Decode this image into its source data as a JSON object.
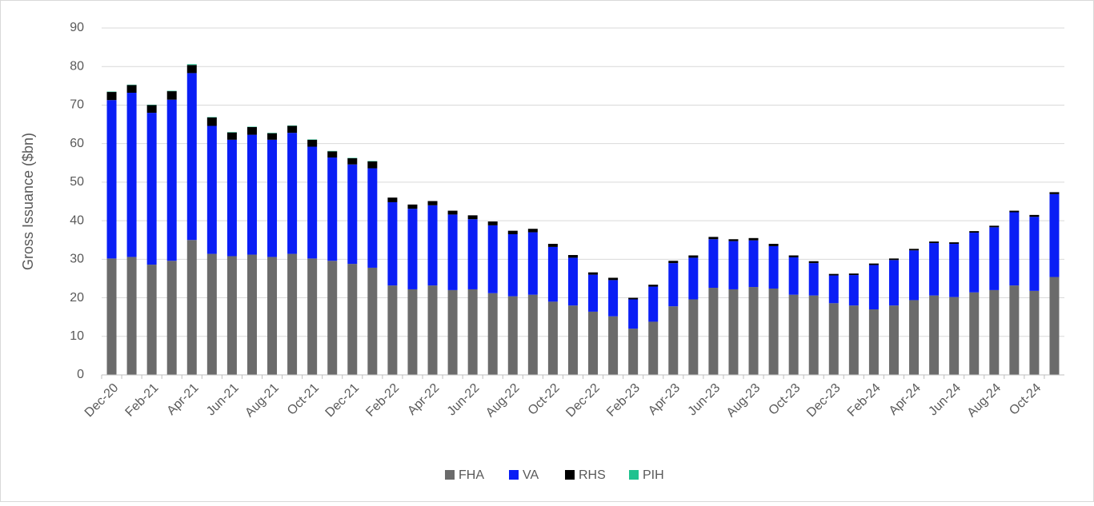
{
  "chart_data": {
    "type": "stacked_bar",
    "y_label": "Gross Issuance ($bn)",
    "categories": [
      "Dec-20",
      null,
      "Feb-21",
      null,
      "Apr-21",
      null,
      "Jun-21",
      null,
      "Aug-21",
      null,
      "Oct-21",
      null,
      "Dec-21",
      null,
      "Feb-22",
      null,
      "Apr-22",
      null,
      "Jun-22",
      null,
      "Aug-22",
      null,
      "Oct-22",
      null,
      "Dec-22",
      null,
      "Feb-23",
      null,
      "Apr-23",
      null,
      "Jun-23",
      null,
      "Aug-23",
      null,
      "Oct-23",
      null,
      "Dec-23",
      null,
      "Feb-24",
      null,
      "Apr-24",
      null,
      "Jun-24",
      null,
      "Aug-24",
      null,
      "Oct-24",
      null
    ],
    "series": [
      {
        "name": "FHA",
        "color": "#6b6b6b",
        "values": [
          30.2,
          30.6,
          28.6,
          29.6,
          35.0,
          31.4,
          30.8,
          31.2,
          30.6,
          31.4,
          30.2,
          29.6,
          28.8,
          27.8,
          23.2,
          22.2,
          23.2,
          22.0,
          22.2,
          21.2,
          20.4,
          20.8,
          19.0,
          18.0,
          16.4,
          15.2,
          12.0,
          13.8,
          17.8,
          19.6,
          22.6,
          22.2,
          22.8,
          22.4,
          20.8,
          20.6,
          18.6,
          18.0,
          17.0,
          18.0,
          19.4,
          20.6,
          20.2,
          21.4,
          22.0,
          23.2,
          21.8,
          25.4
        ]
      },
      {
        "name": "VA",
        "color": "#0a1ef5",
        "values": [
          41.1,
          42.6,
          39.4,
          41.8,
          43.3,
          33.2,
          30.2,
          31.1,
          30.4,
          31.4,
          29.0,
          26.8,
          25.8,
          25.8,
          21.6,
          20.9,
          20.8,
          19.6,
          18.2,
          17.6,
          16.1,
          16.2,
          14.2,
          12.4,
          9.6,
          9.4,
          7.6,
          9.1,
          11.2,
          10.8,
          12.6,
          12.5,
          12.1,
          11.0,
          9.7,
          8.4,
          7.2,
          7.9,
          11.5,
          11.8,
          12.9,
          13.6,
          13.8,
          15.5,
          16.3,
          19.0,
          19.2,
          21.5
        ]
      },
      {
        "name": "RHS",
        "color": "#000000",
        "values": [
          2.1,
          2.0,
          2.0,
          2.2,
          2.1,
          2.2,
          1.9,
          2.0,
          1.7,
          1.8,
          1.8,
          1.6,
          1.6,
          1.8,
          1.2,
          1.1,
          1.1,
          1.0,
          1.0,
          1.0,
          0.9,
          0.9,
          0.8,
          0.7,
          0.6,
          0.6,
          0.4,
          0.5,
          0.6,
          0.6,
          0.6,
          0.5,
          0.6,
          0.6,
          0.5,
          0.5,
          0.4,
          0.4,
          0.4,
          0.4,
          0.4,
          0.4,
          0.4,
          0.4,
          0.4,
          0.4,
          0.5,
          0.5
        ]
      },
      {
        "name": "PIH",
        "color": "#1fc28f",
        "values": [
          0.1,
          0.1,
          0.1,
          0.1,
          0.2,
          0.1,
          0.1,
          0.1,
          0.1,
          0.1,
          0.1,
          0.1,
          0.1,
          0.1,
          0,
          0,
          0,
          0,
          0,
          0,
          0,
          0,
          0,
          0,
          0,
          0,
          0,
          0,
          0,
          0,
          0,
          0,
          0,
          0,
          0,
          0,
          0,
          0,
          0,
          0,
          0,
          0,
          0,
          0,
          0,
          0,
          0,
          0
        ]
      }
    ],
    "ylim": [
      0,
      90
    ],
    "yticks": [
      0,
      10,
      20,
      30,
      40,
      50,
      60,
      70,
      80,
      90
    ],
    "grid": true,
    "legend": "bottom"
  }
}
